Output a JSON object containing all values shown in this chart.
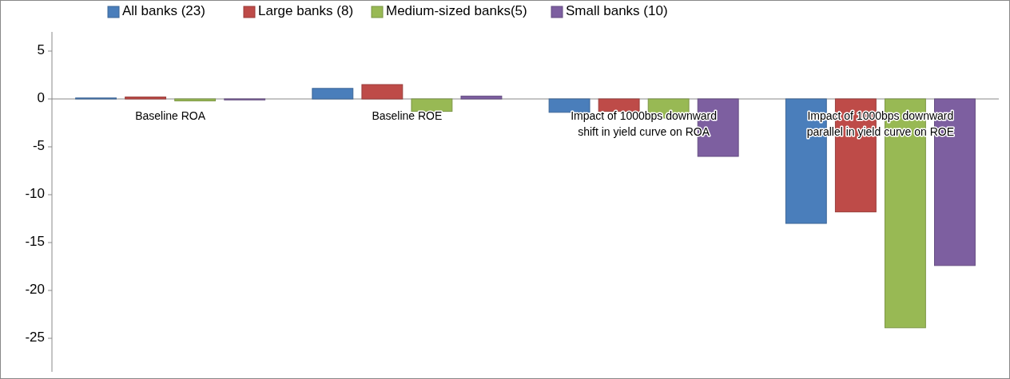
{
  "chart_data": {
    "type": "bar",
    "categories": [
      "Baseline ROA",
      "Baseline ROE",
      "Impact of 1000bps downward shift in yield curve on ROA",
      "Impact of 1000bps downward parallel in yield curve on ROE"
    ],
    "series": [
      {
        "name": "All banks (23)",
        "color": "#4a7ebb",
        "values": [
          0.1,
          1.1,
          -1.4,
          -13.0
        ]
      },
      {
        "name": "Large banks (8)",
        "color": "#be4b48",
        "values": [
          0.2,
          1.5,
          -1.3,
          -11.8
        ]
      },
      {
        "name": "Medium-sized banks(5)",
        "color": "#98b954",
        "values": [
          -0.2,
          -1.3,
          -2.0,
          -23.9
        ]
      },
      {
        "name": "Small banks (10)",
        "color": "#7d5fa0",
        "values": [
          -0.1,
          0.3,
          -6.0,
          -17.4
        ]
      }
    ],
    "ylim": [
      -28.5,
      7
    ],
    "yticks": [
      -25,
      -20,
      -15,
      -10,
      -5,
      0,
      5
    ],
    "grid": false,
    "legend": "top"
  }
}
